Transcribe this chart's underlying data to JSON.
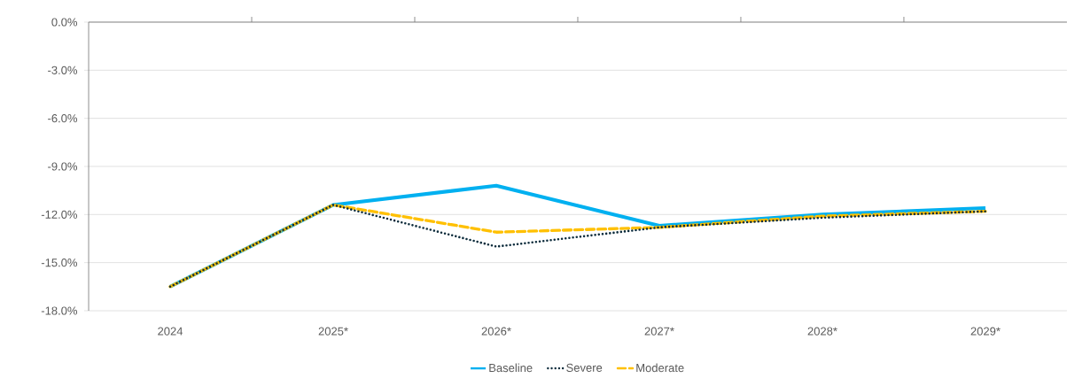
{
  "chart_data": {
    "type": "line",
    "categories": [
      "2024",
      "2025*",
      "2026*",
      "2027*",
      "2028*",
      "2029*"
    ],
    "series": [
      {
        "name": "Baseline",
        "color": "#00b0f0",
        "line_style": "solid",
        "values": [
          -16.5,
          -11.4,
          -10.2,
          -12.7,
          -12.0,
          -11.6
        ]
      },
      {
        "name": "Severe",
        "color": "#0d2c3c",
        "line_style": "dotted",
        "values": [
          -16.5,
          -11.4,
          -14.0,
          -12.8,
          -12.2,
          -11.8
        ]
      },
      {
        "name": "Moderate",
        "color": "#ffc000",
        "line_style": "dashed",
        "values": [
          -16.5,
          -11.4,
          -13.1,
          -12.8,
          -12.1,
          -11.8
        ]
      }
    ],
    "ylim": [
      -18,
      0
    ],
    "yticks": [
      {
        "value": 0,
        "label": "0.0%"
      },
      {
        "value": -3,
        "label": "-3.0%"
      },
      {
        "value": -6,
        "label": "-6.0%"
      },
      {
        "value": -9,
        "label": "-9.0%"
      },
      {
        "value": -12,
        "label": "-12.0%"
      },
      {
        "value": -15,
        "label": "-15.0%"
      },
      {
        "value": -18,
        "label": "-18.0%"
      }
    ],
    "grid": "y",
    "legend": "bottom",
    "marker": "none"
  }
}
